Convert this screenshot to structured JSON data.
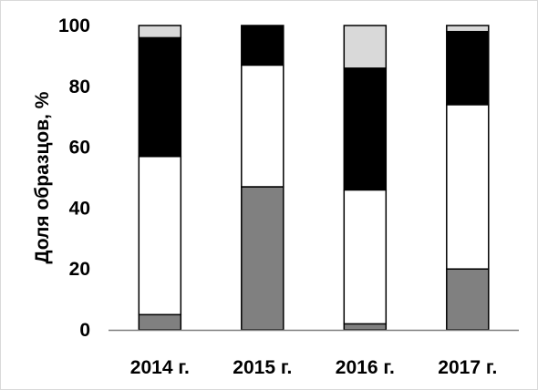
{
  "chart_data": {
    "type": "bar",
    "stacked": true,
    "title": "",
    "xlabel": "",
    "ylabel": "Доля образцов, %",
    "ylim": [
      0,
      100
    ],
    "yticks": [
      0,
      20,
      40,
      60,
      80,
      100
    ],
    "grid": false,
    "legend": "none",
    "categories": [
      "2014 г.",
      "2015 г.",
      "2016 г.",
      "2017 г."
    ],
    "series": [
      {
        "color": "#808080",
        "values": [
          5,
          47,
          2,
          20
        ]
      },
      {
        "color": "#ffffff",
        "values": [
          52,
          40,
          44,
          54
        ]
      },
      {
        "color": "#000000",
        "values": [
          39,
          13,
          40,
          24
        ]
      },
      {
        "color": "#d9d9d9",
        "values": [
          4,
          0,
          14,
          2
        ]
      }
    ]
  },
  "colors": {
    "axis": "#7f7f7f",
    "bar_outline": "#000000",
    "frame": "#d9d9d9"
  }
}
